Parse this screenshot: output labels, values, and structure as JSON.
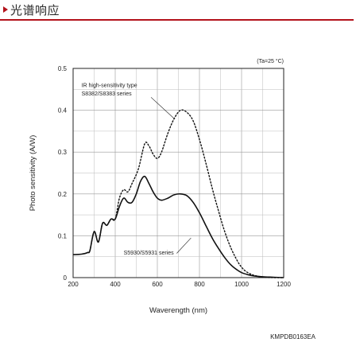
{
  "header": {
    "title": "光谱响应",
    "accent_color": "#b3121b"
  },
  "chart_data": {
    "type": "line",
    "xlabel": "Waverength (nm)",
    "ylabel": "Photo sensitivity (A/W)",
    "xlim": [
      200,
      1200
    ],
    "ylim": [
      0,
      0.5
    ],
    "xticks": [
      200,
      400,
      600,
      800,
      1000,
      1200
    ],
    "yticks": [
      0,
      0.1,
      0.2,
      0.3,
      0.4,
      0.5
    ],
    "grid": true,
    "condition": "(Ta=25 °C)",
    "figure_code": "KMPDB0163EA",
    "series": [
      {
        "name": "IR high-sensitivity type S8382/S8383 series",
        "label_line1": "IR high-sensitivity type",
        "label_line2": "S8382/S8383 series",
        "style": "dotted",
        "points": [
          [
            270,
            0.06
          ],
          [
            280,
            0.065
          ],
          [
            300,
            0.11
          ],
          [
            320,
            0.085
          ],
          [
            340,
            0.13
          ],
          [
            360,
            0.125
          ],
          [
            380,
            0.14
          ],
          [
            400,
            0.14
          ],
          [
            420,
            0.19
          ],
          [
            440,
            0.21
          ],
          [
            460,
            0.205
          ],
          [
            480,
            0.225
          ],
          [
            510,
            0.26
          ],
          [
            540,
            0.32
          ],
          [
            560,
            0.315
          ],
          [
            580,
            0.295
          ],
          [
            600,
            0.285
          ],
          [
            620,
            0.3
          ],
          [
            650,
            0.345
          ],
          [
            680,
            0.38
          ],
          [
            710,
            0.4
          ],
          [
            740,
            0.395
          ],
          [
            770,
            0.375
          ],
          [
            800,
            0.33
          ],
          [
            830,
            0.275
          ],
          [
            860,
            0.215
          ],
          [
            890,
            0.16
          ],
          [
            920,
            0.11
          ],
          [
            950,
            0.07
          ],
          [
            980,
            0.04
          ],
          [
            1000,
            0.025
          ],
          [
            1020,
            0.015
          ],
          [
            1050,
            0.007
          ],
          [
            1080,
            0.003
          ],
          [
            1100,
            0.001
          ],
          [
            1150,
            0.0
          ],
          [
            1200,
            0.0
          ]
        ]
      },
      {
        "name": "S5930/S5931 series",
        "label_line1": "S5930/S5931 series",
        "style": "solid",
        "points": [
          [
            200,
            0.055
          ],
          [
            240,
            0.056
          ],
          [
            270,
            0.06
          ],
          [
            280,
            0.065
          ],
          [
            300,
            0.11
          ],
          [
            320,
            0.085
          ],
          [
            340,
            0.13
          ],
          [
            360,
            0.125
          ],
          [
            380,
            0.14
          ],
          [
            400,
            0.14
          ],
          [
            420,
            0.17
          ],
          [
            440,
            0.19
          ],
          [
            460,
            0.18
          ],
          [
            480,
            0.18
          ],
          [
            500,
            0.2
          ],
          [
            520,
            0.23
          ],
          [
            540,
            0.242
          ],
          [
            560,
            0.225
          ],
          [
            580,
            0.205
          ],
          [
            600,
            0.19
          ],
          [
            620,
            0.185
          ],
          [
            650,
            0.19
          ],
          [
            680,
            0.198
          ],
          [
            710,
            0.2
          ],
          [
            740,
            0.196
          ],
          [
            770,
            0.18
          ],
          [
            800,
            0.155
          ],
          [
            830,
            0.125
          ],
          [
            860,
            0.095
          ],
          [
            890,
            0.07
          ],
          [
            920,
            0.048
          ],
          [
            950,
            0.03
          ],
          [
            980,
            0.018
          ],
          [
            1000,
            0.012
          ],
          [
            1030,
            0.007
          ],
          [
            1060,
            0.004
          ],
          [
            1100,
            0.002
          ],
          [
            1150,
            0.001
          ],
          [
            1200,
            0.0
          ]
        ]
      }
    ]
  }
}
